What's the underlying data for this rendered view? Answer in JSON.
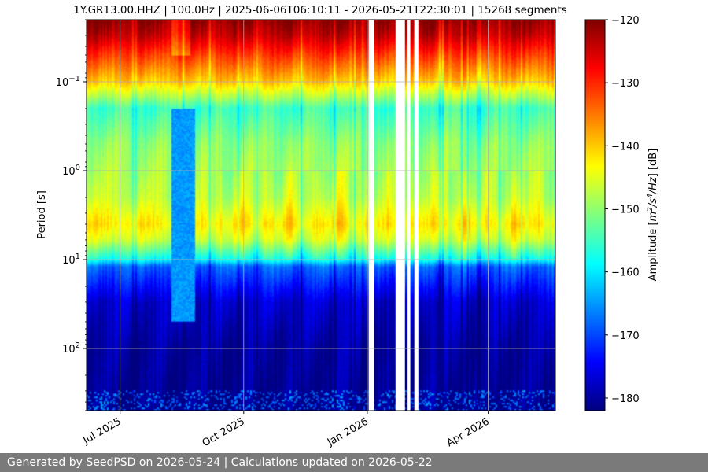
{
  "chart_data": {
    "type": "heatmap",
    "title": "1Y.GR13.00.HHZ | 100.0Hz | 2025-06-06T06:10:11 - 2026-05-21T22:30:01 | 15268 segments",
    "ylabel": "Period [s]",
    "y_scale": "log",
    "y_ticks": [
      {
        "value": 0.1,
        "base": "10",
        "exp": "−1"
      },
      {
        "value": 1,
        "base": "10",
        "exp": "0"
      },
      {
        "value": 10,
        "base": "10",
        "exp": "1"
      },
      {
        "value": 100,
        "base": "10",
        "exp": "2"
      }
    ],
    "y_range": [
      0.02,
      500
    ],
    "x_ticks": [
      {
        "date": "2025-07-01",
        "label": "Jul 2025"
      },
      {
        "date": "2025-10-01",
        "label": "Oct 2025"
      },
      {
        "date": "2026-01-01",
        "label": "Jan 2026"
      },
      {
        "date": "2026-04-01",
        "label": "Apr 2026"
      }
    ],
    "x_range": [
      "2025-06-06",
      "2026-05-21"
    ],
    "grid": true,
    "data_gaps": [
      {
        "start": "2026-01-02",
        "end": "2026-01-06"
      },
      {
        "start": "2026-01-22",
        "end": "2026-01-29"
      },
      {
        "start": "2026-01-31",
        "end": "2026-02-02"
      },
      {
        "start": "2026-02-05",
        "end": "2026-02-08"
      }
    ],
    "colorbar": {
      "label_text": "Amplitude [m²/s⁴/Hz] [dB]",
      "label_pre": "Amplitude [",
      "label_unit_m": "m",
      "label_sup2": "2",
      "label_unit_s": "/s",
      "label_sup4": "4",
      "label_unit_hz": "/Hz",
      "label_post": "] [dB]",
      "range": [
        -182,
        -120
      ],
      "ticks": [
        {
          "value": -120,
          "label": "−120"
        },
        {
          "value": -130,
          "label": "−130"
        },
        {
          "value": -140,
          "label": "−140"
        },
        {
          "value": -150,
          "label": "−150"
        },
        {
          "value": -160,
          "label": "−160"
        },
        {
          "value": -170,
          "label": "−170"
        },
        {
          "value": -180,
          "label": "−180"
        }
      ],
      "colormap": "jet"
    }
  },
  "footer": {
    "text": "Generated by SeedPSD on 2026-05-24 | Calculations updated on 2026-05-22"
  }
}
